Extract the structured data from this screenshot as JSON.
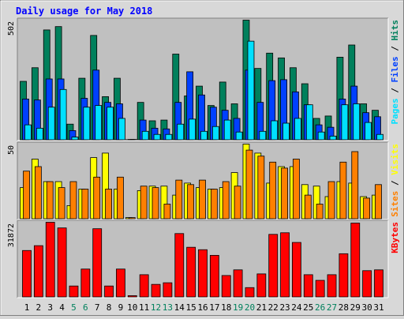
{
  "title": "Daily usage for May 2018",
  "categories": [
    "1",
    "2",
    "3",
    "4",
    "5",
    "6",
    "7",
    "8",
    "9",
    "10",
    "11",
    "12",
    "13",
    "14",
    "15",
    "16",
    "17",
    "18",
    "19",
    "20",
    "21",
    "22",
    "23",
    "24",
    "25",
    "26",
    "27",
    "28",
    "29",
    "30",
    "31"
  ],
  "category_colors": [
    "#000000",
    "#000000",
    "#000000",
    "#000000",
    "#00805c",
    "#00805c",
    "#000000",
    "#000000",
    "#000000",
    "#000000",
    "#000000",
    "#00805c",
    "#00805c",
    "#000000",
    "#000000",
    "#000000",
    "#000000",
    "#000000",
    "#00805c",
    "#00805c",
    "#000000",
    "#000000",
    "#000000",
    "#000000",
    "#000000",
    "#00805c",
    "#00805c",
    "#000000",
    "#000000",
    "#000000",
    "#000000"
  ],
  "legend_separator": " / ",
  "chart_data": [
    {
      "type": "bar",
      "ylim": [
        0,
        502
      ],
      "series": [
        {
          "name": "Hits",
          "color": "#00805c",
          "values": [
            246,
            303,
            461,
            475,
            67,
            259,
            438,
            182,
            259,
            2,
            158,
            81,
            84,
            360,
            185,
            226,
            145,
            243,
            152,
            502,
            300,
            364,
            344,
            303,
            236,
            91,
            101,
            347,
            398,
            152,
            125
          ]
        },
        {
          "name": "Files",
          "color": "#0040ff",
          "values": [
            172,
            168,
            256,
            256,
            40,
            175,
            293,
            158,
            152,
            3,
            84,
            50,
            47,
            158,
            286,
            189,
            138,
            125,
            91,
            293,
            158,
            249,
            253,
            202,
            148,
            64,
            54,
            172,
            226,
            115,
            98
          ]
        },
        {
          "name": "Pages",
          "color": "#00e0ff",
          "values": [
            64,
            50,
            138,
            212,
            13,
            138,
            145,
            138,
            91,
            3,
            37,
            24,
            24,
            67,
            88,
            37,
            57,
            84,
            34,
            414,
            37,
            81,
            71,
            91,
            148,
            34,
            17,
            148,
            152,
            74,
            24
          ]
        }
      ]
    },
    {
      "type": "bar",
      "ylim": [
        0,
        50
      ],
      "series": [
        {
          "name": "Visits",
          "color": "#ffff00",
          "values": [
            21,
            40,
            25,
            25,
            9,
            20,
            41,
            44,
            20,
            1,
            19,
            22,
            22,
            16,
            24,
            21,
            20,
            21,
            31,
            50,
            44,
            24,
            35,
            35,
            23,
            22,
            15,
            25,
            24,
            15,
            16
          ]
        },
        {
          "name": "Sites",
          "color": "#ff8000",
          "values": [
            32,
            35,
            25,
            21,
            25,
            20,
            28,
            20,
            28,
            1,
            22,
            21,
            10,
            26,
            23,
            26,
            20,
            25,
            22,
            46,
            42,
            38,
            34,
            40,
            16,
            10,
            25,
            38,
            45,
            14,
            23
          ]
        }
      ]
    },
    {
      "type": "bar",
      "ylim": [
        0,
        31872
      ],
      "series": [
        {
          "name": "KBytes",
          "color": "#ff0000",
          "values": [
            19877,
            21934,
            31872,
            29473,
            4798,
            11995,
            29130,
            4798,
            11995,
            685,
            9596,
            5483,
            6169,
            27074,
            21248,
            20220,
            17821,
            9253,
            11652,
            4113,
            9938,
            26731,
            27417,
            23304,
            9596,
            7197,
            9596,
            18506,
            31529,
            11309,
            11652
          ]
        }
      ]
    }
  ]
}
